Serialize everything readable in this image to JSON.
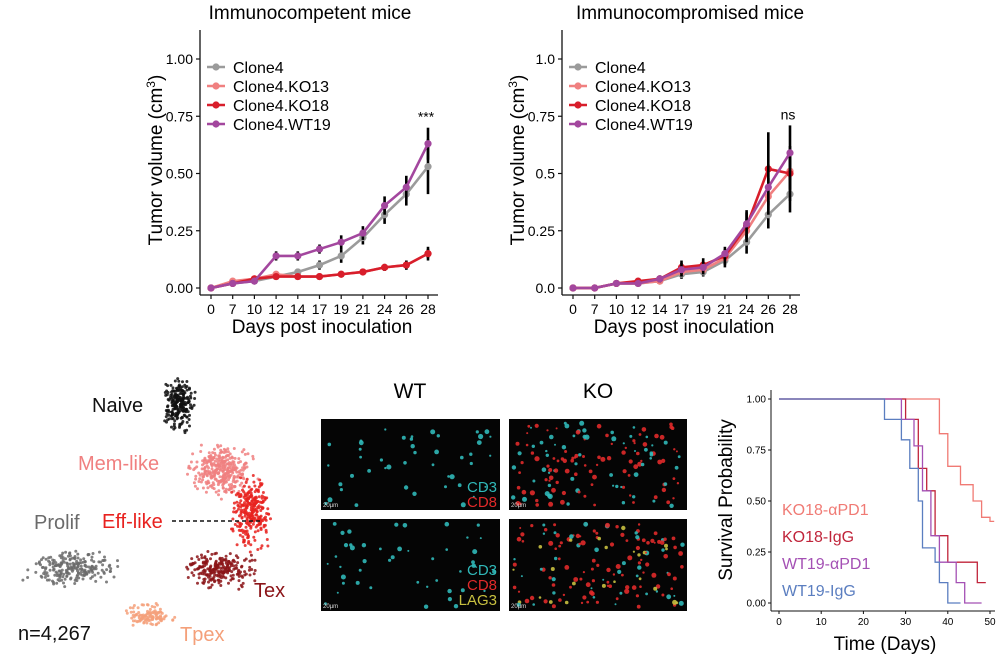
{
  "chart_data": [
    {
      "type": "line",
      "title": "Immunocompetent mice",
      "xlabel": "Days post inoculation",
      "ylabel": "Tumor volume (cm",
      "ylabel_sup": "3",
      "ylabel_close": ")",
      "x": [
        0,
        7,
        10,
        12,
        14,
        17,
        19,
        21,
        24,
        26,
        28
      ],
      "ylim": [
        0,
        1.1
      ],
      "yticks": [
        0,
        0.25,
        0.5,
        0.75,
        1.0
      ],
      "ytick_labels": [
        "0.00",
        "0.25",
        "0.50",
        "0.75",
        "1.00"
      ],
      "annotation": "***",
      "series": [
        {
          "name": "Clone4",
          "color": "#9b9b9b",
          "values": [
            0.0,
            0.02,
            0.03,
            0.05,
            0.07,
            0.1,
            0.14,
            0.22,
            0.32,
            0.41,
            0.53
          ],
          "err": [
            0.005,
            0.01,
            0.01,
            0.015,
            0.015,
            0.02,
            0.03,
            0.03,
            0.04,
            0.05,
            0.12
          ]
        },
        {
          "name": "Clone4.KO13",
          "color": "#f08080",
          "values": [
            0.0,
            0.03,
            0.04,
            0.06,
            0.05,
            0.05,
            0.06,
            0.07,
            0.09,
            0.1,
            0.15
          ],
          "err": [
            0.005,
            0.01,
            0.01,
            0.01,
            0.01,
            0.01,
            0.01,
            0.01,
            0.015,
            0.02,
            0.02
          ]
        },
        {
          "name": "Clone4.KO18",
          "color": "#d81e2b",
          "values": [
            0.0,
            0.02,
            0.04,
            0.05,
            0.05,
            0.05,
            0.06,
            0.07,
            0.09,
            0.1,
            0.15
          ],
          "err": [
            0.005,
            0.01,
            0.01,
            0.01,
            0.01,
            0.01,
            0.01,
            0.01,
            0.015,
            0.02,
            0.03
          ]
        },
        {
          "name": "Clone4.WT19",
          "color": "#a3479e",
          "values": [
            0.0,
            0.02,
            0.03,
            0.14,
            0.14,
            0.17,
            0.2,
            0.24,
            0.36,
            0.44,
            0.63
          ],
          "err": [
            0.005,
            0.01,
            0.01,
            0.02,
            0.02,
            0.02,
            0.03,
            0.03,
            0.04,
            0.05,
            0.07
          ]
        }
      ]
    },
    {
      "type": "line",
      "title": "Immunocompromised mice",
      "xlabel": "Days post inoculation",
      "ylabel": "Tumor volume (cm",
      "ylabel_sup": "3",
      "ylabel_close": ")",
      "x": [
        0,
        7,
        10,
        12,
        14,
        17,
        19,
        21,
        24,
        26,
        28
      ],
      "ylim": [
        0,
        1.1
      ],
      "yticks": [
        0,
        0.25,
        0.5,
        0.75,
        1.0
      ],
      "ytick_labels": [
        "0.0",
        "0.25",
        "0.5",
        "0.75",
        "1.0"
      ],
      "annotation": "ns",
      "series": [
        {
          "name": "Clone4",
          "color": "#9b9b9b",
          "values": [
            0.0,
            0.0,
            0.02,
            0.02,
            0.03,
            0.06,
            0.07,
            0.12,
            0.2,
            0.32,
            0.41
          ],
          "err": [
            0.005,
            0.005,
            0.01,
            0.01,
            0.01,
            0.02,
            0.02,
            0.03,
            0.05,
            0.06,
            0.08
          ]
        },
        {
          "name": "Clone4.KO13",
          "color": "#f08080",
          "values": [
            0.0,
            0.0,
            0.02,
            0.02,
            0.03,
            0.07,
            0.08,
            0.13,
            0.25,
            0.4,
            0.51
          ],
          "err": [
            0.005,
            0.005,
            0.01,
            0.01,
            0.01,
            0.02,
            0.02,
            0.03,
            0.05,
            0.08,
            0.08
          ]
        },
        {
          "name": "Clone4.KO18",
          "color": "#d81e2b",
          "values": [
            0.0,
            0.0,
            0.02,
            0.03,
            0.04,
            0.09,
            0.1,
            0.14,
            0.27,
            0.52,
            0.5
          ],
          "err": [
            0.005,
            0.005,
            0.01,
            0.01,
            0.015,
            0.03,
            0.03,
            0.03,
            0.06,
            0.16,
            0.12
          ]
        },
        {
          "name": "Clone4.WT19",
          "color": "#a3479e",
          "values": [
            0.0,
            0.0,
            0.02,
            0.02,
            0.04,
            0.08,
            0.09,
            0.15,
            0.28,
            0.44,
            0.59
          ],
          "err": [
            0.005,
            0.005,
            0.01,
            0.01,
            0.015,
            0.03,
            0.03,
            0.03,
            0.06,
            0.1,
            0.12
          ]
        }
      ]
    },
    {
      "type": "scatter",
      "subtype": "umap-clusters",
      "annotation": "n=4,267",
      "clusters": [
        {
          "name": "Naive",
          "color": "#111111"
        },
        {
          "name": "Mem-like",
          "color": "#f08080"
        },
        {
          "name": "Eff-like",
          "color": "#e8221f"
        },
        {
          "name": "Prolif",
          "color": "#6b6b6b"
        },
        {
          "name": "Tex",
          "color": "#8b1418"
        },
        {
          "name": "Tpex",
          "color": "#f4a07a"
        }
      ]
    },
    {
      "type": "image-grid",
      "columns": [
        "WT",
        "KO"
      ],
      "rows": [
        {
          "stains": [
            "CD3",
            "CD8"
          ],
          "colors": [
            "#30b8b8",
            "#e02a2a"
          ]
        },
        {
          "stains": [
            "CD3",
            "CD8",
            "LAG3"
          ],
          "colors": [
            "#30b8b8",
            "#e02a2a",
            "#c8c040"
          ]
        }
      ],
      "scalebar": "20µm"
    },
    {
      "type": "line",
      "subtype": "kaplan-meier",
      "xlabel": "Time (Days)",
      "ylabel": "Survival Probability",
      "xlim": [
        0,
        50
      ],
      "ylim": [
        0,
        1
      ],
      "xticks": [
        0,
        10,
        20,
        30,
        40,
        50
      ],
      "yticks": [
        0,
        0.25,
        0.5,
        0.75,
        1.0
      ],
      "ytick_labels": [
        "0.00",
        "0.25",
        "0.50",
        "0.75",
        "1.00"
      ],
      "series": [
        {
          "name": "KO18-αPD1",
          "color": "#f07a74",
          "steps": [
            [
              0,
              1.0
            ],
            [
              38,
              1.0
            ],
            [
              38,
              0.83
            ],
            [
              40,
              0.83
            ],
            [
              40,
              0.67
            ],
            [
              43,
              0.67
            ],
            [
              43,
              0.58
            ],
            [
              46,
              0.58
            ],
            [
              46,
              0.5
            ],
            [
              48,
              0.5
            ],
            [
              48,
              0.42
            ],
            [
              50,
              0.42
            ],
            [
              50,
              0.4
            ],
            [
              51,
              0.4
            ]
          ]
        },
        {
          "name": "KO18-IgG",
          "color": "#c0243a",
          "steps": [
            [
              0,
              1.0
            ],
            [
              30,
              1.0
            ],
            [
              30,
              0.9
            ],
            [
              33,
              0.9
            ],
            [
              33,
              0.66
            ],
            [
              35,
              0.66
            ],
            [
              35,
              0.55
            ],
            [
              37,
              0.55
            ],
            [
              37,
              0.33
            ],
            [
              40,
              0.33
            ],
            [
              40,
              0.2
            ],
            [
              47,
              0.2
            ],
            [
              47,
              0.1
            ],
            [
              49,
              0.1
            ]
          ]
        },
        {
          "name": "WT19-αPD1",
          "color": "#a450b4",
          "steps": [
            [
              0,
              1.0
            ],
            [
              29,
              1.0
            ],
            [
              29,
              0.9
            ],
            [
              32,
              0.9
            ],
            [
              32,
              0.77
            ],
            [
              34,
              0.77
            ],
            [
              34,
              0.55
            ],
            [
              36,
              0.55
            ],
            [
              36,
              0.33
            ],
            [
              38,
              0.33
            ],
            [
              38,
              0.2
            ],
            [
              42,
              0.2
            ],
            [
              42,
              0.1
            ],
            [
              44,
              0.1
            ],
            [
              44,
              0.0
            ],
            [
              48,
              0.0
            ]
          ]
        },
        {
          "name": "WT19-IgG",
          "color": "#5b7ec0",
          "steps": [
            [
              0,
              1.0
            ],
            [
              25,
              1.0
            ],
            [
              25,
              0.9
            ],
            [
              29,
              0.9
            ],
            [
              29,
              0.8
            ],
            [
              31,
              0.8
            ],
            [
              31,
              0.66
            ],
            [
              33,
              0.66
            ],
            [
              33,
              0.5
            ],
            [
              34,
              0.5
            ],
            [
              34,
              0.27
            ],
            [
              37,
              0.27
            ],
            [
              37,
              0.2
            ],
            [
              38,
              0.2
            ],
            [
              38,
              0.1
            ],
            [
              40,
              0.1
            ],
            [
              40,
              0.0
            ],
            [
              43,
              0.0
            ]
          ]
        }
      ]
    }
  ]
}
